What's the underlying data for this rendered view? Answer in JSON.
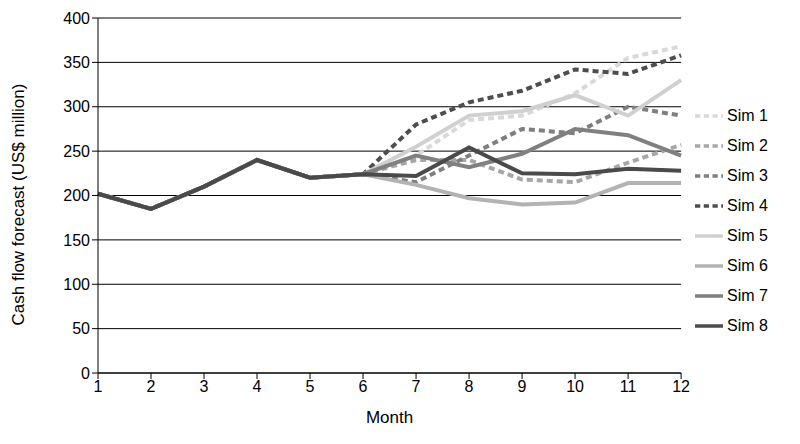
{
  "chart_data": {
    "type": "line",
    "x_label": "Month",
    "y_label": "Cash flow forecast (US$ million)",
    "categories": [
      "1",
      "2",
      "3",
      "4",
      "5",
      "6",
      "7",
      "8",
      "9",
      "10",
      "11",
      "12"
    ],
    "series": [
      {
        "name": "Sim 1",
        "color": "#d9d9d9",
        "line_style": "dashed",
        "values": [
          202,
          185,
          210,
          240,
          220,
          224,
          245,
          285,
          290,
          315,
          355,
          368
        ]
      },
      {
        "name": "Sim 2",
        "color": "#a6a6a6",
        "line_style": "dashed",
        "values": [
          202,
          185,
          210,
          240,
          220,
          224,
          240,
          240,
          218,
          215,
          237,
          257
        ]
      },
      {
        "name": "Sim 3",
        "color": "#7f7f7f",
        "line_style": "dashed",
        "values": [
          202,
          185,
          210,
          240,
          220,
          224,
          215,
          245,
          275,
          270,
          300,
          290
        ]
      },
      {
        "name": "Sim 4",
        "color": "#4d4d4d",
        "line_style": "dashed",
        "values": [
          202,
          185,
          210,
          240,
          220,
          224,
          280,
          305,
          318,
          342,
          337,
          358
        ]
      },
      {
        "name": "Sim 5",
        "color": "#d0d0d0",
        "line_style": "solid",
        "values": [
          202,
          185,
          210,
          240,
          220,
          224,
          255,
          290,
          295,
          313,
          290,
          330
        ]
      },
      {
        "name": "Sim 6",
        "color": "#b3b3b3",
        "line_style": "solid",
        "values": [
          202,
          185,
          210,
          240,
          220,
          224,
          212,
          197,
          190,
          192,
          214,
          214
        ]
      },
      {
        "name": "Sim 7",
        "color": "#808080",
        "line_style": "solid",
        "values": [
          202,
          185,
          210,
          240,
          220,
          224,
          245,
          232,
          247,
          275,
          268,
          245
        ]
      },
      {
        "name": "Sim 8",
        "color": "#4a4a4a",
        "line_style": "solid",
        "values": [
          202,
          185,
          210,
          240,
          220,
          224,
          222,
          254,
          225,
          224,
          230,
          228
        ]
      }
    ],
    "ylim": [
      0,
      400
    ],
    "yticks": [
      0,
      50,
      100,
      150,
      200,
      250,
      300,
      350,
      400
    ],
    "grid": true,
    "legend": "right"
  }
}
